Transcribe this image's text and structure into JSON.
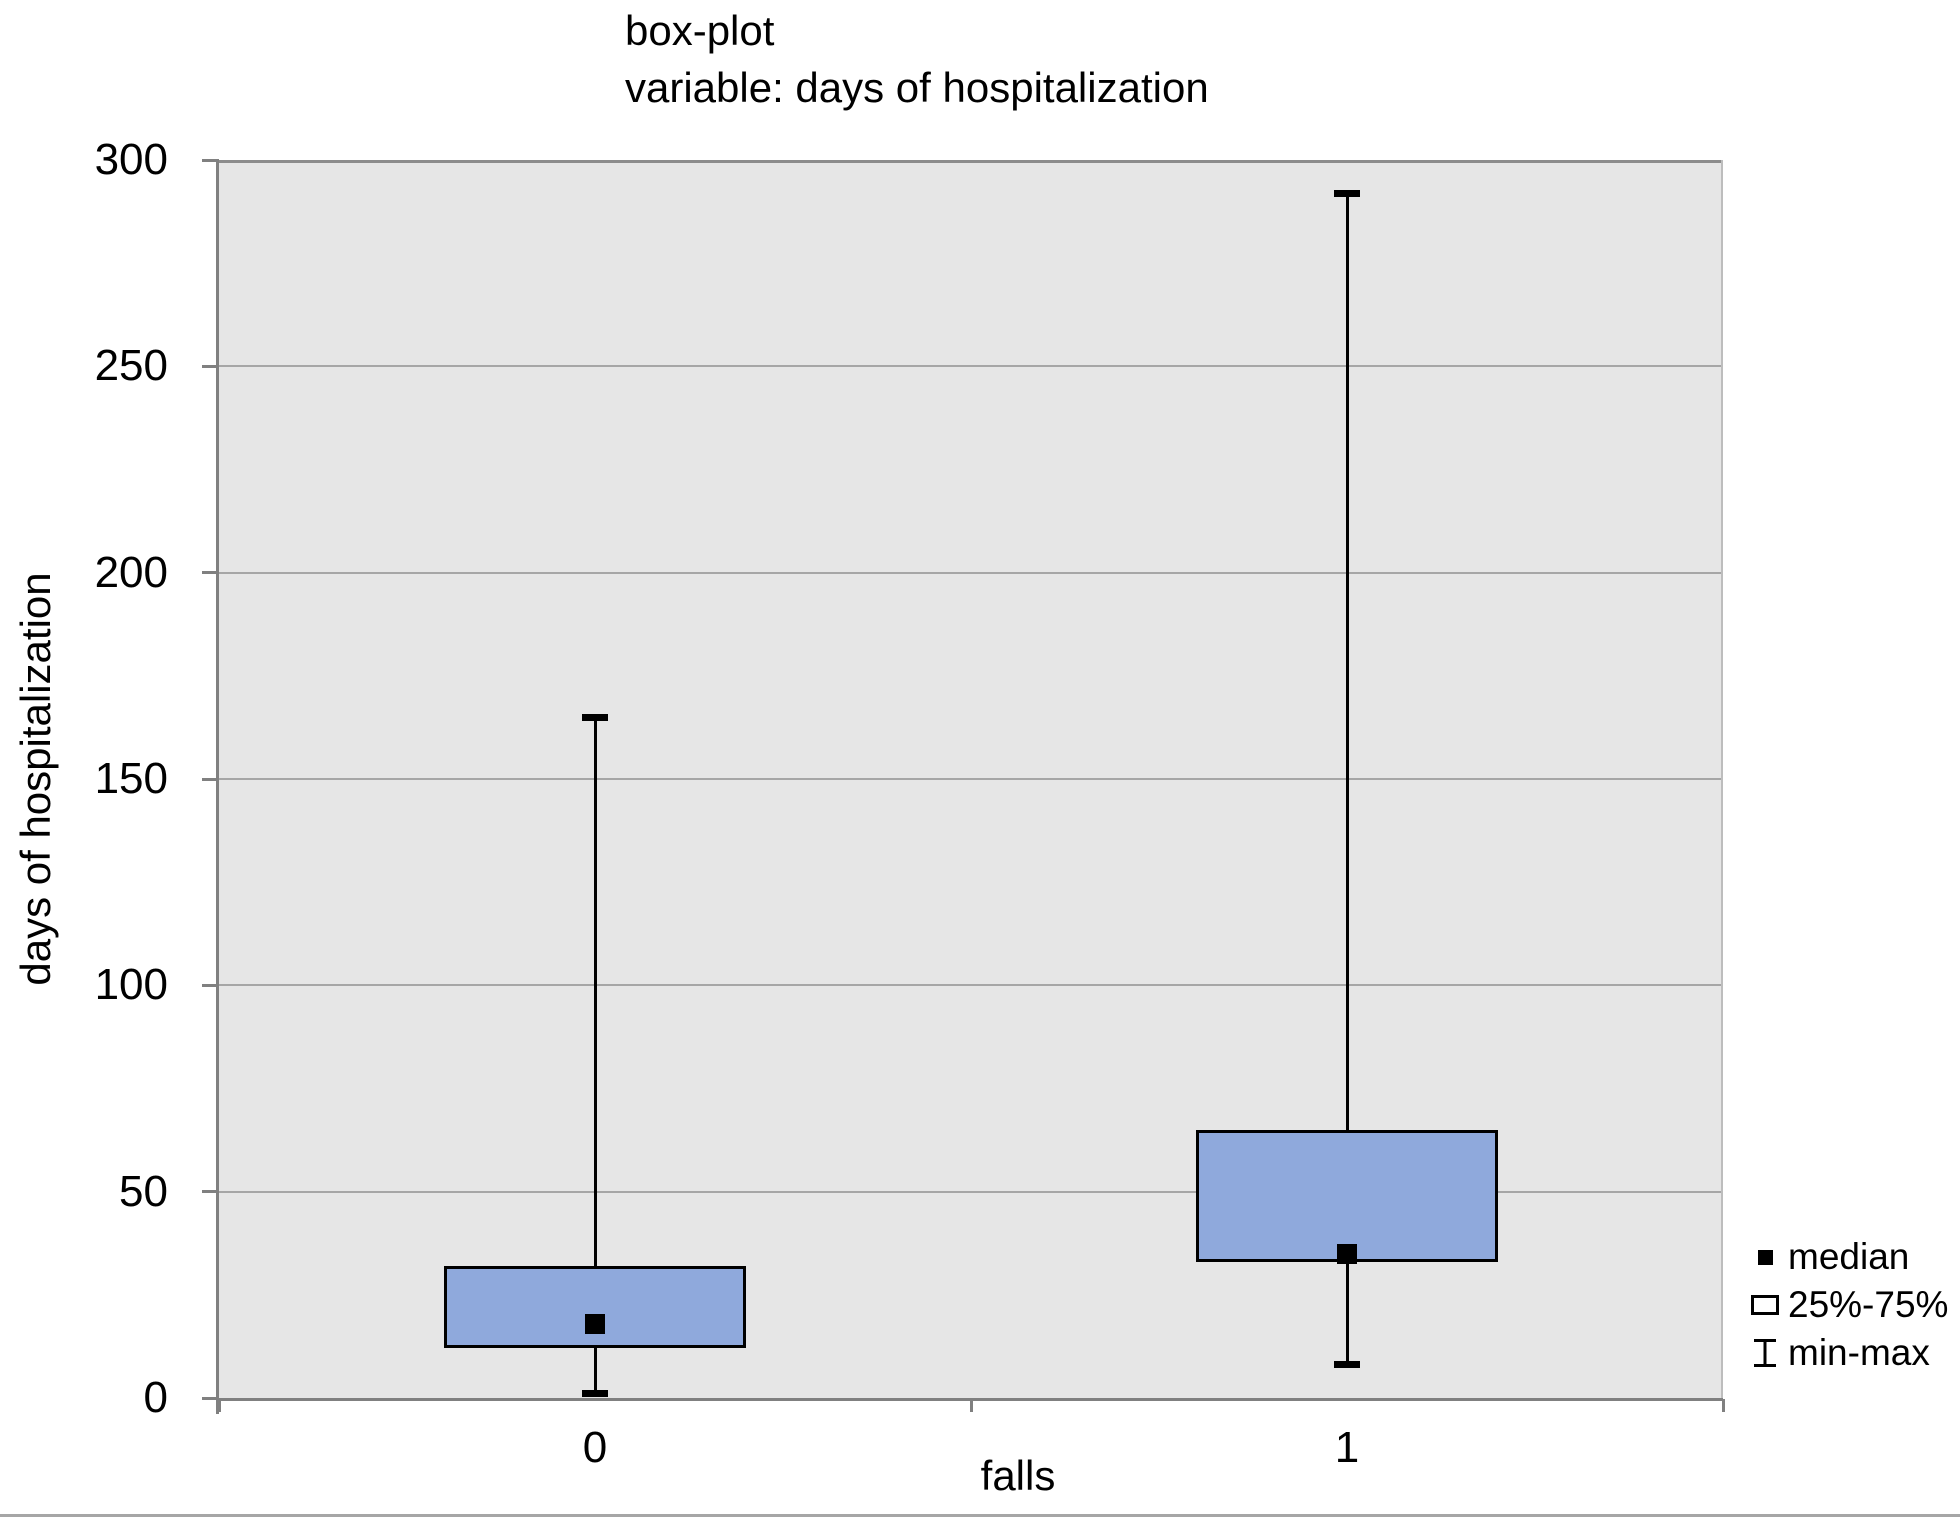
{
  "chart_data": {
    "type": "boxplot",
    "title_lines": [
      "box-plot",
      "variable: days of hospitalization"
    ],
    "xlabel": "falls",
    "ylabel": "days of hospitalization",
    "ylim": [
      0,
      300
    ],
    "yticks": [
      0,
      50,
      100,
      150,
      200,
      250,
      300
    ],
    "categories": [
      "0",
      "1"
    ],
    "series": [
      {
        "category": "0",
        "min": 1,
        "q1": 12,
        "median": 18,
        "q3": 32,
        "max": 165
      },
      {
        "category": "1",
        "min": 8,
        "q1": 33,
        "median": 35,
        "q3": 65,
        "max": 292
      }
    ],
    "legend": [
      {
        "marker": "filled-square",
        "label": "median"
      },
      {
        "marker": "open-rectangle",
        "label": "25%-75%"
      },
      {
        "marker": "whisker",
        "label": "min-max"
      }
    ],
    "grid": true,
    "legend_position": "right-bottom",
    "colors": {
      "box_fill": "#8fa9dc",
      "box_border": "#000000",
      "median_marker": "#000000",
      "whisker": "#000000",
      "plot_background": "#e6e6e6",
      "gridline": "#a6a6a6",
      "axis": "#808080",
      "text": "#000000"
    }
  }
}
